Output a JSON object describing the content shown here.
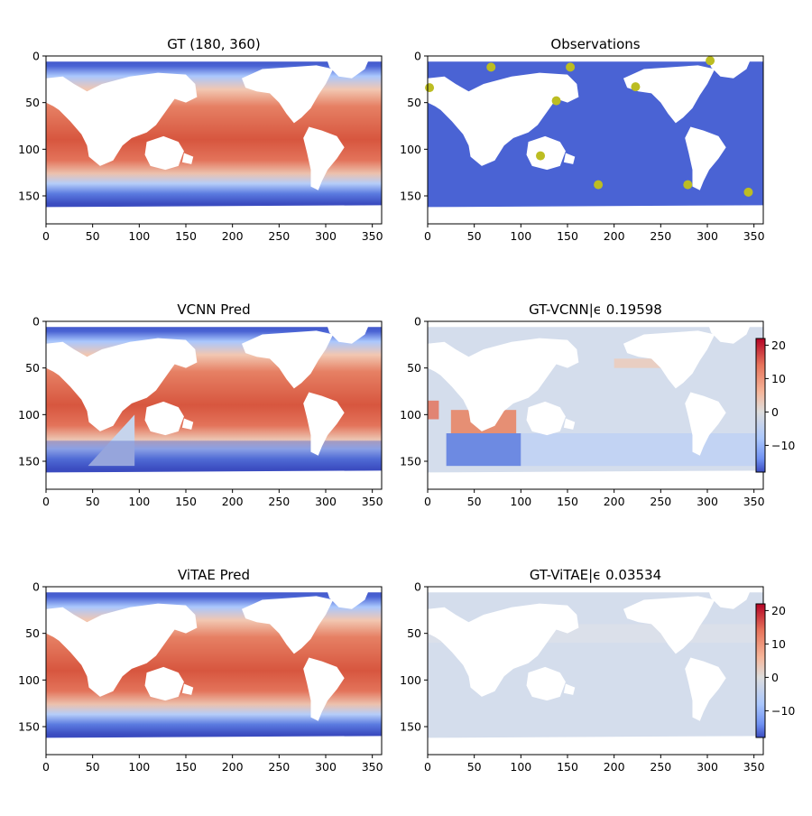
{
  "colors": {
    "ocean_obs": "#4a63d4",
    "marker": "#bcbd22",
    "land": "#ffffff",
    "cmap": [
      "#3b4cc0",
      "#6f91f2",
      "#aac7fd",
      "#dddddd",
      "#f6b69a",
      "#e7745b",
      "#b40426"
    ]
  },
  "x_ticks": [
    "0",
    "50",
    "100",
    "150",
    "200",
    "250",
    "300",
    "350"
  ],
  "y_ticks": [
    "0",
    "50",
    "100",
    "150"
  ],
  "colorbar_ticks": [
    "20",
    "10",
    "0",
    "−10"
  ],
  "panels": {
    "gt": {
      "title": "GT (180, 360)"
    },
    "obs": {
      "title": "Observations"
    },
    "vcnn": {
      "title": "VCNN Pred"
    },
    "vcnn_err": {
      "title": "GT-VCNN|ϵ 0.19598"
    },
    "vitae": {
      "title": "ViTAE Pred"
    },
    "vitae_err": {
      "title": "GT-ViTAE|ϵ 0.03534"
    }
  },
  "chart_data": [
    {
      "type": "heatmap",
      "title": "GT (180, 360)",
      "xlim": [
        0,
        360
      ],
      "ylim": [
        180,
        0
      ]
    },
    {
      "type": "scatter",
      "title": "Observations",
      "xlim": [
        0,
        360
      ],
      "ylim": [
        180,
        0
      ],
      "points": [
        {
          "x": 2,
          "y": 34
        },
        {
          "x": 68,
          "y": 12
        },
        {
          "x": 153,
          "y": 12
        },
        {
          "x": 138,
          "y": 48
        },
        {
          "x": 121,
          "y": 107
        },
        {
          "x": 183,
          "y": 138
        },
        {
          "x": 223,
          "y": 33
        },
        {
          "x": 303,
          "y": 5
        },
        {
          "x": 279,
          "y": 138
        },
        {
          "x": 344,
          "y": 146
        }
      ]
    },
    {
      "type": "heatmap",
      "title": "VCNN Pred",
      "xlim": [
        0,
        360
      ],
      "ylim": [
        180,
        0
      ]
    },
    {
      "type": "heatmap",
      "title": "GT-VCNN|ϵ 0.19598",
      "xlim": [
        0,
        360
      ],
      "ylim": [
        180,
        0
      ],
      "colorbar_range": [
        -18,
        22
      ]
    },
    {
      "type": "heatmap",
      "title": "ViTAE Pred",
      "xlim": [
        0,
        360
      ],
      "ylim": [
        180,
        0
      ]
    },
    {
      "type": "heatmap",
      "title": "GT-ViTAE|ϵ 0.03534",
      "xlim": [
        0,
        360
      ],
      "ylim": [
        180,
        0
      ],
      "colorbar_range": [
        -18,
        22
      ]
    }
  ]
}
